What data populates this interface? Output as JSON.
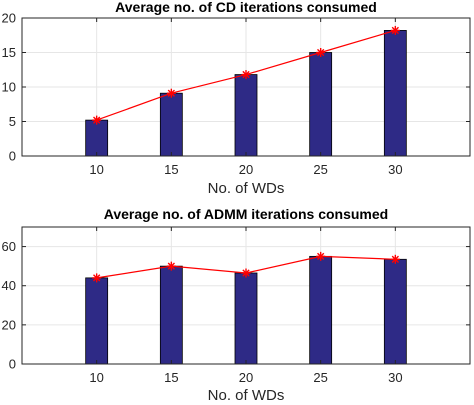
{
  "chart_data": [
    {
      "type": "bar",
      "title": "Average no. of CD iterations consumed",
      "xlabel": "No. of WDs",
      "ylabel": "",
      "categories": [
        "10",
        "15",
        "20",
        "25",
        "30"
      ],
      "x": [
        10,
        15,
        20,
        25,
        30
      ],
      "values": [
        5.2,
        9.1,
        11.8,
        15.0,
        18.2
      ],
      "line_values": [
        5.2,
        9.1,
        11.8,
        15.0,
        18.2
      ],
      "xlim": [
        5,
        35
      ],
      "ylim": [
        0,
        20
      ],
      "yticks": [
        0,
        5,
        10,
        15,
        20
      ],
      "grid": true,
      "bar_color": "#2e2a86",
      "line_color": "#ff0000"
    },
    {
      "type": "bar",
      "title": "Average no. of ADMM iterations consumed",
      "xlabel": "No. of WDs",
      "ylabel": "",
      "categories": [
        "10",
        "15",
        "20",
        "25",
        "30"
      ],
      "x": [
        10,
        15,
        20,
        25,
        30
      ],
      "values": [
        44.0,
        50.0,
        46.5,
        55.0,
        53.5
      ],
      "line_values": [
        44.0,
        50.0,
        46.5,
        55.0,
        53.5
      ],
      "xlim": [
        5,
        35
      ],
      "ylim": [
        0,
        70
      ],
      "yticks": [
        0,
        20,
        40,
        60
      ],
      "grid": true,
      "bar_color": "#2e2a86",
      "line_color": "#ff0000"
    }
  ]
}
